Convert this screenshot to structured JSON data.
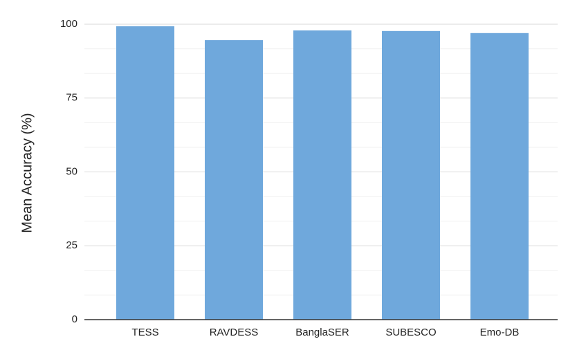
{
  "chart_data": {
    "type": "bar",
    "y_label": "Mean Accuracy (%)",
    "categories": [
      "TESS",
      "RAVDESS",
      "BanglaSER",
      "SUBESCO",
      "Emo-DB"
    ],
    "values": [
      99.3,
      94.6,
      97.9,
      97.7,
      97.0
    ],
    "color": "#6fa8dc",
    "ylim": [
      0,
      100
    ],
    "yticks": [
      0,
      25,
      50,
      75,
      100
    ],
    "grid": true,
    "minor_grid_per_tick": 3
  }
}
